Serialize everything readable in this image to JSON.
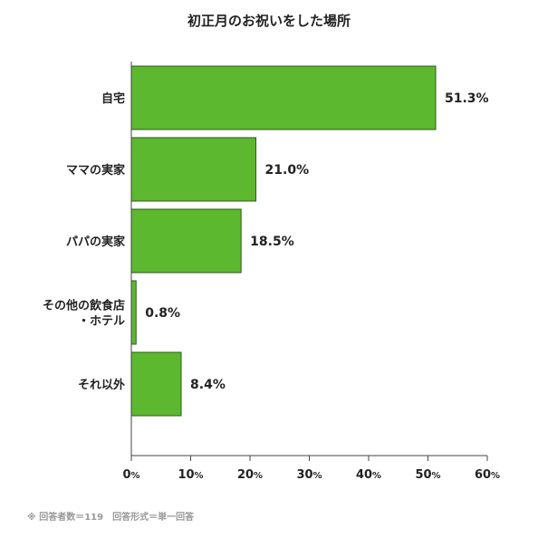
{
  "chart_data": {
    "type": "bar",
    "orientation": "horizontal",
    "title": "初正月のお祝いをした場所",
    "categories": [
      [
        "自宅"
      ],
      [
        "ママの実家"
      ],
      [
        "パパの実家"
      ],
      [
        "その他の飲食店",
        "・ホテル"
      ],
      [
        "それ以外"
      ]
    ],
    "values": [
      51.3,
      21.0,
      18.5,
      0.8,
      8.4
    ],
    "value_labels": [
      "51.3%",
      "21.0%",
      "18.5%",
      "0.8%",
      "8.4%"
    ],
    "xlim": [
      0,
      60
    ],
    "xticks": [
      0,
      10,
      20,
      30,
      40,
      50,
      60
    ],
    "tick_unit": "%",
    "bar_color": "#5cb82e",
    "bar_stroke": "#2e5a17",
    "grid": false,
    "note": "※ 回答者数＝119　回答形式＝単一回答"
  }
}
